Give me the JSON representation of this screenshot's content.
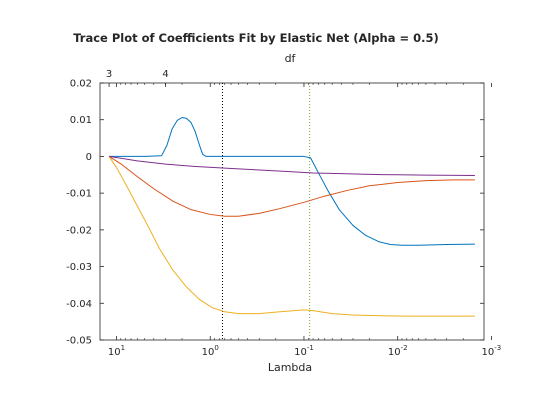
{
  "chart_data": {
    "type": "line",
    "title": "Trace Plot of Coefficients Fit by Elastic Net (Alpha = 0.5)",
    "xlabel": "Lambda",
    "ylabel": "",
    "top_axis_label": "df",
    "x_scale": "log",
    "x_reversed": true,
    "xlim": [
      15,
      0.0012
    ],
    "ylim": [
      -0.05,
      0.02
    ],
    "x_ticks": [
      {
        "value": 10,
        "base": "10",
        "exp": "1"
      },
      {
        "value": 1,
        "base": "10",
        "exp": "0"
      },
      {
        "value": 0.1,
        "base": "10",
        "exp": "-1"
      },
      {
        "value": 0.01,
        "base": "10",
        "exp": "-2"
      },
      {
        "value": 0.001,
        "base": "10",
        "exp": "-3"
      }
    ],
    "y_ticks": [
      "0.02",
      "0.01",
      "0",
      "-0.01",
      "-0.02",
      "-0.03",
      "-0.04",
      "-0.05"
    ],
    "y_tick_values": [
      0.02,
      0.01,
      0,
      -0.01,
      -0.02,
      -0.03,
      -0.04,
      -0.05
    ],
    "top_ticks": [
      {
        "lambda": 12,
        "label": "3"
      },
      {
        "lambda": 3,
        "label": "4"
      }
    ],
    "vertical_lines": [
      {
        "lambda": 0.74,
        "style": "dotted",
        "color": "#000000"
      },
      {
        "lambda": 0.087,
        "style": "dotted",
        "color": "#77ac30"
      }
    ],
    "grid": false,
    "legend": "none",
    "series": [
      {
        "color": "#0072bd",
        "points": [
          [
            12,
            0
          ],
          [
            8,
            0
          ],
          [
            5,
            0
          ],
          [
            3.3,
            0.0002
          ],
          [
            2.9,
            0.003
          ],
          [
            2.55,
            0.0075
          ],
          [
            2.25,
            0.0098
          ],
          [
            2.0,
            0.0106
          ],
          [
            1.8,
            0.0104
          ],
          [
            1.6,
            0.0092
          ],
          [
            1.45,
            0.0068
          ],
          [
            1.3,
            0.003
          ],
          [
            1.2,
            0.0005
          ],
          [
            1.1,
            0
          ],
          [
            0.5,
            0
          ],
          [
            0.2,
            0
          ],
          [
            0.1,
            0
          ],
          [
            0.085,
            -0.0004
          ],
          [
            0.07,
            -0.0045
          ],
          [
            0.055,
            -0.0095
          ],
          [
            0.042,
            -0.0145
          ],
          [
            0.03,
            -0.0188
          ],
          [
            0.022,
            -0.0215
          ],
          [
            0.016,
            -0.0232
          ],
          [
            0.012,
            -0.024
          ],
          [
            0.009,
            -0.0242
          ],
          [
            0.006,
            -0.0242
          ],
          [
            0.003,
            -0.024
          ],
          [
            0.0015,
            -0.0239
          ]
        ]
      },
      {
        "color": "#d95319",
        "points": [
          [
            12,
            0
          ],
          [
            9,
            -0.002
          ],
          [
            6,
            -0.0055
          ],
          [
            4,
            -0.0088
          ],
          [
            2.5,
            -0.0122
          ],
          [
            1.6,
            -0.0145
          ],
          [
            1,
            -0.0158
          ],
          [
            0.7,
            -0.0163
          ],
          [
            0.5,
            -0.0163
          ],
          [
            0.3,
            -0.0155
          ],
          [
            0.18,
            -0.0142
          ],
          [
            0.1,
            -0.0125
          ],
          [
            0.06,
            -0.0108
          ],
          [
            0.035,
            -0.0093
          ],
          [
            0.02,
            -0.008
          ],
          [
            0.01,
            -0.0071
          ],
          [
            0.005,
            -0.0066
          ],
          [
            0.0025,
            -0.0064
          ],
          [
            0.0015,
            -0.0064
          ]
        ]
      },
      {
        "color": "#edb120",
        "points": [
          [
            12,
            0
          ],
          [
            10,
            -0.003
          ],
          [
            8,
            -0.0075
          ],
          [
            6,
            -0.0135
          ],
          [
            4.5,
            -0.0195
          ],
          [
            3.5,
            -0.025
          ],
          [
            2.5,
            -0.031
          ],
          [
            1.8,
            -0.0355
          ],
          [
            1.3,
            -0.039
          ],
          [
            0.95,
            -0.0412
          ],
          [
            0.7,
            -0.0423
          ],
          [
            0.5,
            -0.0428
          ],
          [
            0.3,
            -0.0428
          ],
          [
            0.18,
            -0.0423
          ],
          [
            0.1,
            -0.0418
          ],
          [
            0.08,
            -0.042
          ],
          [
            0.05,
            -0.0428
          ],
          [
            0.03,
            -0.0432
          ],
          [
            0.015,
            -0.0434
          ],
          [
            0.008,
            -0.0435
          ],
          [
            0.003,
            -0.0435
          ],
          [
            0.0015,
            -0.0435
          ]
        ]
      },
      {
        "color": "#7e2f8e",
        "points": [
          [
            12,
            0
          ],
          [
            6,
            -0.0012
          ],
          [
            3,
            -0.0021
          ],
          [
            1.5,
            -0.0027
          ],
          [
            0.7,
            -0.0032
          ],
          [
            0.3,
            -0.0037
          ],
          [
            0.15,
            -0.0041
          ],
          [
            0.08,
            -0.0045
          ],
          [
            0.04,
            -0.0047
          ],
          [
            0.02,
            -0.0049
          ],
          [
            0.01,
            -0.005
          ],
          [
            0.005,
            -0.0051
          ],
          [
            0.0015,
            -0.0052
          ]
        ]
      }
    ]
  }
}
